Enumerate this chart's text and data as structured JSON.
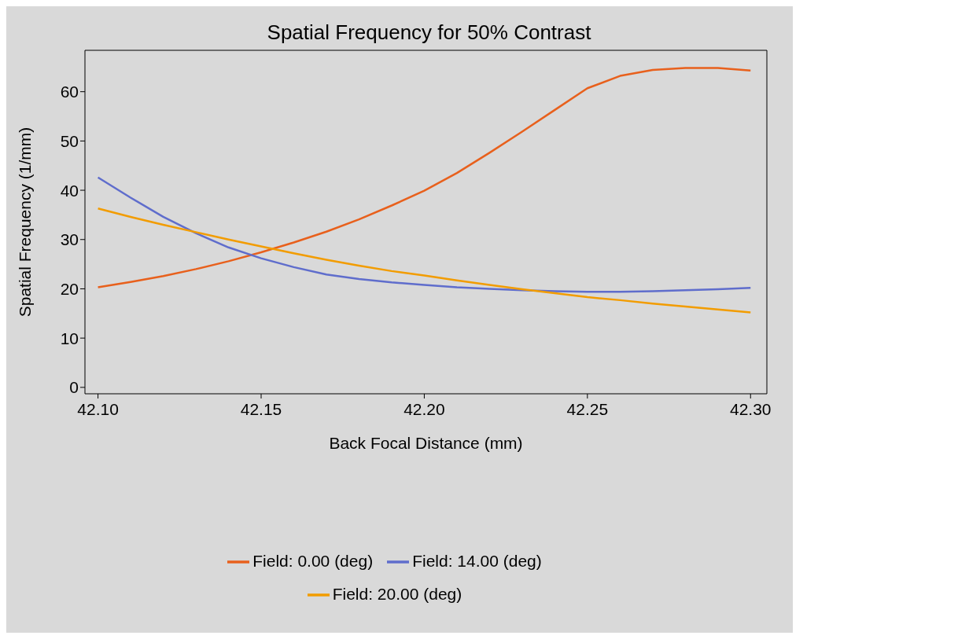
{
  "chart_data": {
    "type": "line",
    "title": "Spatial Frequency for 50% Contrast",
    "xlabel": "Back Focal Distance (mm)",
    "ylabel": "Spatial Frequency (1/mm)",
    "x": [
      42.1,
      42.11,
      42.12,
      42.13,
      42.14,
      42.15,
      42.16,
      42.17,
      42.18,
      42.19,
      42.2,
      42.21,
      42.22,
      42.23,
      42.24,
      42.25,
      42.26,
      42.27,
      42.28,
      42.29,
      42.3
    ],
    "series": [
      {
        "name": "Field: 0.00 (deg)",
        "color": "#e8601c",
        "values": [
          20.3,
          21.4,
          22.6,
          24.0,
          25.6,
          27.4,
          29.4,
          31.6,
          34.1,
          36.9,
          39.9,
          43.5,
          47.6,
          51.9,
          56.3,
          60.7,
          63.2,
          64.4,
          64.8,
          64.8,
          64.3
        ]
      },
      {
        "name": "Field: 14.00 (deg)",
        "color": "#5f6dcc",
        "values": [
          42.6,
          38.5,
          34.6,
          31.3,
          28.4,
          26.2,
          24.4,
          22.9,
          22.0,
          21.3,
          20.8,
          20.3,
          20.0,
          19.7,
          19.5,
          19.4,
          19.4,
          19.5,
          19.7,
          19.9,
          20.2
        ]
      },
      {
        "name": "Field: 20.00 (deg)",
        "color": "#f29c00",
        "values": [
          36.3,
          34.6,
          33.0,
          31.5,
          30.0,
          28.6,
          27.2,
          25.9,
          24.7,
          23.6,
          22.7,
          21.7,
          20.8,
          19.9,
          19.1,
          18.3,
          17.7,
          17.0,
          16.4,
          15.8,
          15.2
        ]
      }
    ],
    "xlim": [
      42.096,
      42.305
    ],
    "ylim": [
      -1.3,
      68.4
    ],
    "xticks": [
      {
        "value": 42.1,
        "label": "42.10"
      },
      {
        "value": 42.15,
        "label": "42.15"
      },
      {
        "value": 42.2,
        "label": "42.20"
      },
      {
        "value": 42.25,
        "label": "42.25"
      },
      {
        "value": 42.3,
        "label": "42.30"
      }
    ],
    "yticks": [
      0,
      10,
      20,
      30,
      40,
      50,
      60
    ],
    "legend": "bottom",
    "marker": "none",
    "line_style": "solid"
  }
}
